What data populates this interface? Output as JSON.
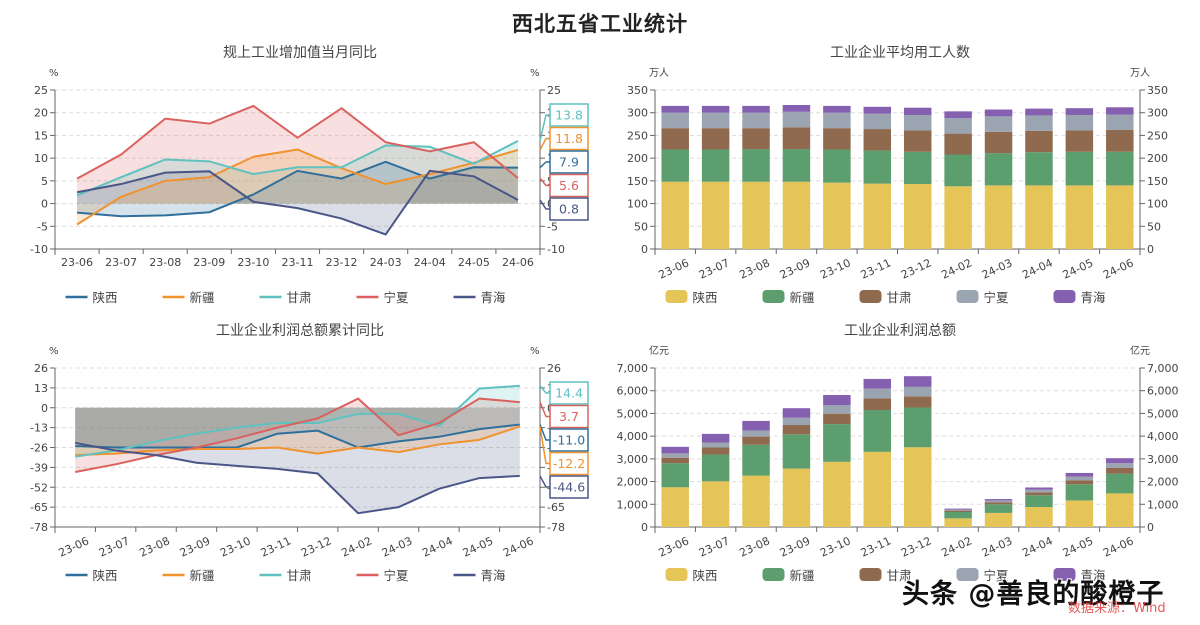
{
  "page": {
    "title": "西北五省工业统计",
    "watermark": "头条 @善良的酸橙子",
    "source": "数据来源：Wind"
  },
  "colors": {
    "陕西_line": "#2f6f9a",
    "新疆_line": "#f0922e",
    "甘肃_line": "#5fc1c0",
    "宁夏_line": "#d9625f",
    "青海_line": "#4a5687",
    "陕西_bar": "#e6c558",
    "新疆_bar": "#5c9e6e",
    "甘肃_bar": "#8f6a4e",
    "宁夏_bar": "#9aa5b1",
    "青海_bar": "#8660b0"
  },
  "chart_data": [
    {
      "type": "area",
      "title": "规上工业增加值当月同比",
      "ylabel_left": "%",
      "ylabel_right": "%",
      "ylim": [
        -10,
        25
      ],
      "yticks": [
        "25",
        "20",
        "15",
        "10",
        "5",
        "0",
        "-5",
        "-10"
      ],
      "categories": [
        "23-06",
        "23-07",
        "23-08",
        "23-09",
        "23-10",
        "23-11",
        "23-12",
        "24-03",
        "24-04",
        "24-05",
        "24-06"
      ],
      "grid": true,
      "legend": "bottom",
      "series": [
        {
          "name": "陕西",
          "values": [
            -2.0,
            -2.8,
            -2.6,
            -1.9,
            2.0,
            7.2,
            5.5,
            9.2,
            5.5,
            8.0,
            7.9
          ]
        },
        {
          "name": "新疆",
          "values": [
            -4.6,
            1.5,
            5.0,
            5.8,
            10.3,
            11.9,
            7.8,
            4.3,
            6.5,
            9.0,
            11.8
          ]
        },
        {
          "name": "甘肃",
          "values": [
            1.8,
            5.8,
            9.7,
            9.3,
            6.5,
            8.0,
            8.0,
            12.8,
            12.5,
            8.8,
            13.8
          ]
        },
        {
          "name": "宁夏",
          "values": [
            5.5,
            10.8,
            18.7,
            17.6,
            21.5,
            14.5,
            21.0,
            13.5,
            11.5,
            13.5,
            5.6
          ]
        },
        {
          "name": "青海",
          "values": [
            2.5,
            4.3,
            6.8,
            7.1,
            0.4,
            -1.0,
            -3.3,
            -6.8,
            7.2,
            6.0,
            0.8
          ]
        }
      ],
      "end_labels": [
        {
          "series": "甘肃",
          "text": "13.8"
        },
        {
          "series": "新疆",
          "text": "11.8"
        },
        {
          "series": "陕西",
          "text": "7.9"
        },
        {
          "series": "宁夏",
          "text": "5.6"
        },
        {
          "series": "青海",
          "text": "0.8"
        }
      ]
    },
    {
      "type": "bar",
      "stacked": true,
      "title": "工业企业平均用工人数",
      "ylabel_left": "万人",
      "ylabel_right": "万人",
      "ylim": [
        0,
        350
      ],
      "yticks": [
        "350",
        "300",
        "250",
        "200",
        "150",
        "100",
        "50",
        "0"
      ],
      "categories": [
        "23-06",
        "23-07",
        "23-08",
        "23-09",
        "23-10",
        "23-11",
        "23-12",
        "24-02",
        "24-03",
        "24-04",
        "24-05",
        "24-06"
      ],
      "grid": true,
      "legend": "bottom",
      "series": [
        {
          "name": "陕西",
          "values": [
            148,
            148,
            148,
            148,
            146,
            144,
            143,
            138,
            140,
            140,
            140,
            140
          ]
        },
        {
          "name": "新疆",
          "values": [
            71,
            71,
            72,
            72,
            73,
            73,
            71,
            70,
            71,
            73,
            74,
            74
          ]
        },
        {
          "name": "甘肃",
          "values": [
            47,
            47,
            46,
            48,
            47,
            47,
            47,
            46,
            47,
            47,
            47,
            48
          ]
        },
        {
          "name": "宁夏",
          "values": [
            34,
            34,
            34,
            34,
            34,
            34,
            34,
            34,
            34,
            34,
            34,
            34
          ]
        },
        {
          "name": "青海",
          "values": [
            15,
            15,
            15,
            15,
            15,
            15,
            16,
            15,
            15,
            15,
            15,
            16
          ]
        }
      ]
    },
    {
      "type": "area",
      "title": "工业企业利润总额累计同比",
      "ylabel_left": "%",
      "ylabel_right": "%",
      "ylim": [
        -78,
        26
      ],
      "yticks": [
        "26",
        "13",
        "0",
        "-13",
        "-26",
        "-39",
        "-52",
        "-65",
        "-78"
      ],
      "categories": [
        "23-06",
        "23-07",
        "23-08",
        "23-09",
        "23-10",
        "23-11",
        "23-12",
        "24-02",
        "24-03",
        "24-04",
        "24-05",
        "24-06"
      ],
      "grid": true,
      "legend": "bottom",
      "series": [
        {
          "name": "陕西",
          "values": [
            -25,
            -26,
            -26,
            -26,
            -26,
            -17,
            -15,
            -26,
            -22,
            -19,
            -14,
            -11.0
          ]
        },
        {
          "name": "新疆",
          "values": [
            -31,
            -30,
            -28,
            -27,
            -27,
            -26,
            -30,
            -26,
            -29,
            -24,
            -21,
            -12.2
          ]
        },
        {
          "name": "甘肃",
          "values": [
            -32,
            -28,
            -22,
            -17,
            -13,
            -10,
            -10,
            -4,
            -4,
            -12,
            12.5,
            14.4
          ]
        },
        {
          "name": "宁夏",
          "values": [
            -42,
            -37,
            -31,
            -26,
            -20,
            -13,
            -7,
            6,
            -18,
            -10,
            6,
            3.7
          ]
        },
        {
          "name": "青海",
          "values": [
            -23,
            -28,
            -31,
            -36,
            -38,
            -40,
            -43,
            -69,
            -65,
            -53,
            -46,
            -44.6
          ]
        }
      ],
      "end_labels": [
        {
          "series": "甘肃",
          "text": "14.4"
        },
        {
          "series": "宁夏",
          "text": "3.7"
        },
        {
          "series": "陕西",
          "text": "-11.0"
        },
        {
          "series": "新疆",
          "text": "-12.2"
        },
        {
          "series": "青海",
          "text": "-44.6"
        }
      ]
    },
    {
      "type": "bar",
      "stacked": true,
      "title": "工业企业利润总额",
      "ylabel_left": "亿元",
      "ylabel_right": "亿元",
      "ylim": [
        0,
        7000
      ],
      "yticks": [
        "7,000",
        "6,000",
        "5,000",
        "4,000",
        "3,000",
        "2,000",
        "1,000",
        "0"
      ],
      "categories": [
        "23-06",
        "23-07",
        "23-08",
        "23-09",
        "23-10",
        "23-11",
        "23-12",
        "24-02",
        "24-03",
        "24-04",
        "24-05",
        "24-06"
      ],
      "grid": true,
      "legend": "bottom",
      "series": [
        {
          "name": "陕西",
          "values": [
            1750,
            2010,
            2260,
            2570,
            2870,
            3310,
            3510,
            380,
            620,
            880,
            1170,
            1480
          ]
        },
        {
          "name": "新疆",
          "values": [
            1060,
            1180,
            1360,
            1510,
            1660,
            1840,
            1750,
            280,
            380,
            520,
            710,
            870
          ]
        },
        {
          "name": "甘肃",
          "values": [
            240,
            310,
            360,
            410,
            460,
            510,
            490,
            60,
            90,
            130,
            180,
            260
          ]
        },
        {
          "name": "宁夏",
          "values": [
            190,
            220,
            270,
            320,
            380,
            430,
            420,
            50,
            80,
            110,
            160,
            200
          ]
        },
        {
          "name": "青海",
          "values": [
            290,
            380,
            420,
            420,
            440,
            430,
            470,
            40,
            60,
            100,
            160,
            220
          ]
        }
      ]
    }
  ]
}
